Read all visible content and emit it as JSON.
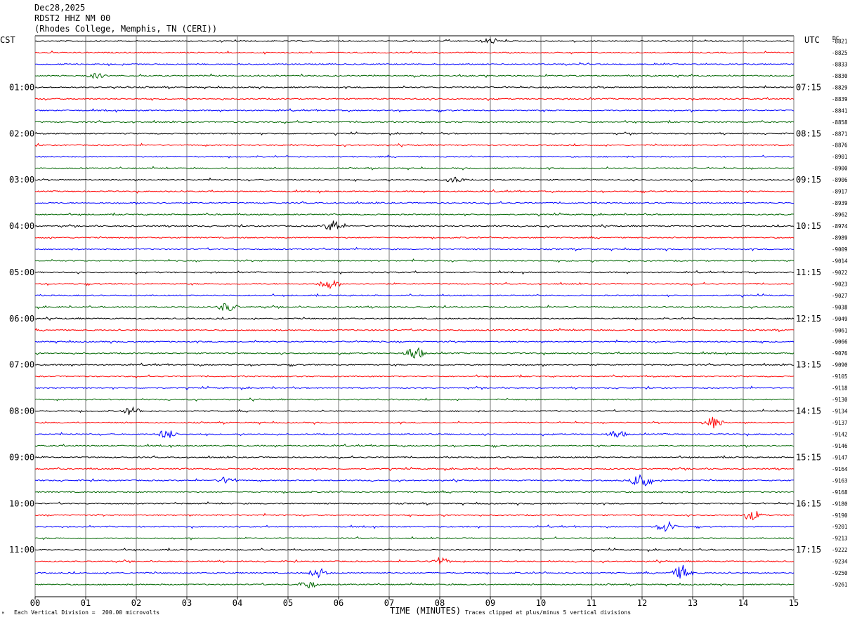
{
  "header": {
    "date": "Dec28,2025",
    "station": "RDST2 HHZ NM 00",
    "location": "(Rhodes College, Memphis, TN (CERI))"
  },
  "left_zone": "CST",
  "right_zone": "UTC",
  "dc_label": "DC",
  "footer": {
    "scale_note": "Each Vertical Division =  200.00 microvolts",
    "xlabel": "TIME (MINUTES)",
    "clip_note": "Traces clipped at plus/minus 5 vertical divisions",
    "corner_mark": "ᴹ"
  },
  "chart_data": {
    "type": "line",
    "title": "RDST2 HHZ NM 00",
    "xlabel": "TIME (MINUTES)",
    "ylabel": "",
    "xlim": [
      0,
      15
    ],
    "x_ticks": [
      "00",
      "01",
      "02",
      "03",
      "04",
      "05",
      "06",
      "07",
      "08",
      "09",
      "10",
      "11",
      "12",
      "13",
      "14",
      "15"
    ],
    "left_hour_labels": [
      "01:00",
      "02:00",
      "03:00",
      "04:00",
      "05:00",
      "06:00",
      "07:00",
      "08:00",
      "09:00",
      "10:00",
      "11:00"
    ],
    "right_hour_labels": [
      "07:15",
      "08:15",
      "09:15",
      "10:15",
      "11:15",
      "12:15",
      "13:15",
      "14:15",
      "15:15",
      "16:15",
      "17:15"
    ],
    "trace_colors": [
      "#000000",
      "#ff0000",
      "#0000ff",
      "#006600"
    ],
    "trace_count": 48,
    "dc_offsets": [
      "-8821",
      "-8825",
      "-8833",
      "-8830",
      "-8829",
      "-8839",
      "-8841",
      "-8858",
      "-8871",
      "-8876",
      "-8901",
      "-8900",
      "-8906",
      "-8917",
      "-8939",
      "-8962",
      "-8974",
      "-8989",
      "-9009",
      "-9014",
      "-9022",
      "-9023",
      "-9027",
      "-9038",
      "-9049",
      "-9061",
      "-9066",
      "-9076",
      "-9090",
      "-9105",
      "-9118",
      "-9130",
      "-9134",
      "-9137",
      "-9142",
      "-9146",
      "-9147",
      "-9164",
      "-9163",
      "-9168",
      "-9180",
      "-9190",
      "-9201",
      "-9213",
      "-9222",
      "-9234",
      "-9250",
      "-9261"
    ],
    "events": [
      {
        "trace": 0,
        "minute": 9.0,
        "amplitude": 0.5
      },
      {
        "trace": 3,
        "minute": 1.2,
        "amplitude": 0.5
      },
      {
        "trace": 12,
        "minute": 8.3,
        "amplitude": 0.6
      },
      {
        "trace": 16,
        "minute": 5.9,
        "amplitude": 1.2
      },
      {
        "trace": 21,
        "minute": 5.8,
        "amplitude": 1.0
      },
      {
        "trace": 23,
        "minute": 3.8,
        "amplitude": 1.0
      },
      {
        "trace": 27,
        "minute": 7.5,
        "amplitude": 1.5
      },
      {
        "trace": 32,
        "minute": 1.9,
        "amplitude": 0.8
      },
      {
        "trace": 33,
        "minute": 13.4,
        "amplitude": 1.2
      },
      {
        "trace": 34,
        "minute": 2.6,
        "amplitude": 1.0
      },
      {
        "trace": 34,
        "minute": 11.5,
        "amplitude": 0.8
      },
      {
        "trace": 38,
        "minute": 12.0,
        "amplitude": 2.2
      },
      {
        "trace": 38,
        "minute": 3.8,
        "amplitude": 0.8
      },
      {
        "trace": 41,
        "minute": 14.2,
        "amplitude": 1.0
      },
      {
        "trace": 42,
        "minute": 12.5,
        "amplitude": 1.2
      },
      {
        "trace": 45,
        "minute": 8.0,
        "amplitude": 0.8
      },
      {
        "trace": 46,
        "minute": 5.6,
        "amplitude": 1.0
      },
      {
        "trace": 46,
        "minute": 12.8,
        "amplitude": 1.6
      },
      {
        "trace": 47,
        "minute": 5.4,
        "amplitude": 0.8
      }
    ]
  }
}
